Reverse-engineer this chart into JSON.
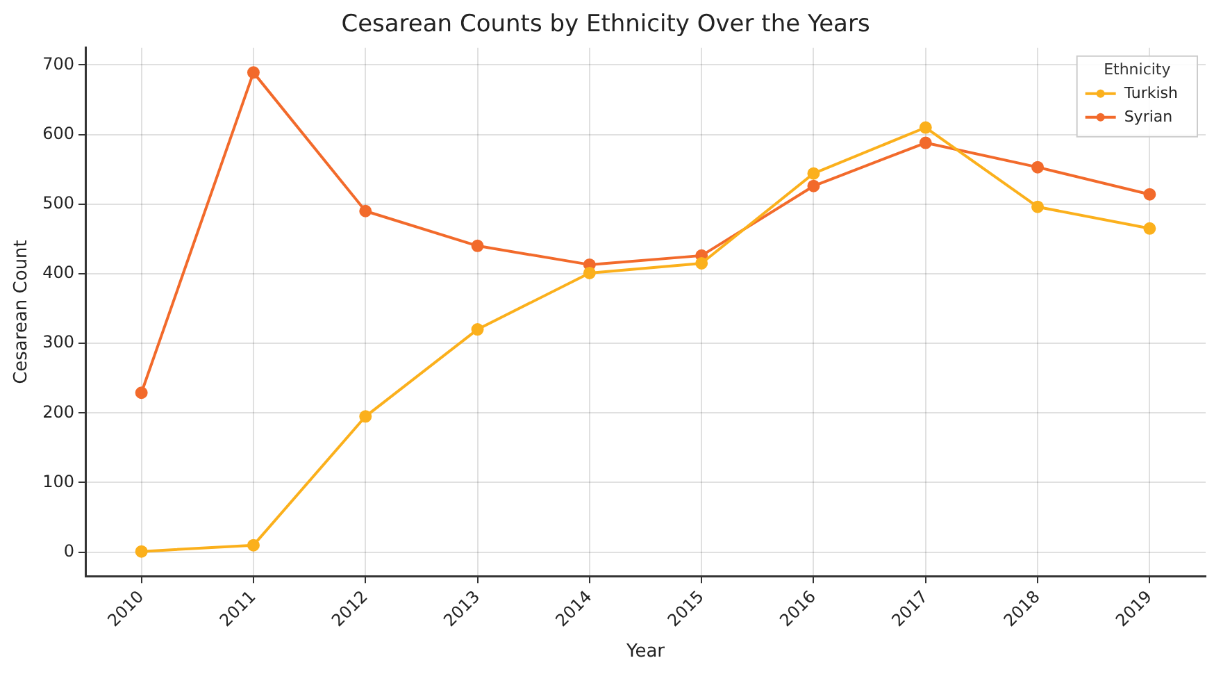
{
  "chart_data": {
    "type": "line",
    "title": "Cesarean Counts by Ethnicity Over the Years",
    "xlabel": "Year",
    "ylabel": "Cesarean Count",
    "legend_title": "Ethnicity",
    "categories": [
      "2010",
      "2011",
      "2012",
      "2013",
      "2014",
      "2015",
      "2016",
      "2017",
      "2018",
      "2019"
    ],
    "series": [
      {
        "name": "Turkish",
        "color": "#fbb01c",
        "values": [
          1,
          10,
          195,
          320,
          401,
          415,
          544,
          610,
          496,
          465
        ]
      },
      {
        "name": "Syrian",
        "color": "#f26a2b",
        "values": [
          229,
          689,
          490,
          440,
          413,
          426,
          526,
          588,
          553,
          514
        ]
      }
    ],
    "ylim": [
      -34.5,
      724.5
    ],
    "yticks": [
      0,
      100,
      200,
      300,
      400,
      500,
      600,
      700
    ],
    "grid": true,
    "legend": "top right",
    "marker": "circle",
    "line_style": "solid"
  }
}
